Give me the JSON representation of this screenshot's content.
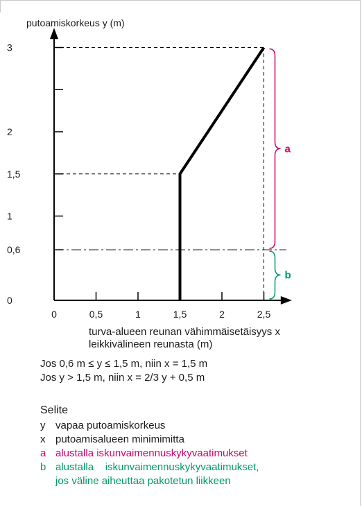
{
  "chart_data": {
    "type": "line",
    "ylabel": "putoamiskorkeus y (m)",
    "xlabel_lines": [
      "turva-alueen reunan vähimmäisetäisyys x",
      "leikkivälineen reunasta (m)"
    ],
    "xlim": [
      0,
      2.8
    ],
    "ylim": [
      0,
      3.2
    ],
    "x_ticks": [
      {
        "value": 0,
        "label": "0"
      },
      {
        "value": 0.5,
        "label": "0,5"
      },
      {
        "value": 1,
        "label": "1"
      },
      {
        "value": 1.5,
        "label": "1,5"
      },
      {
        "value": 2,
        "label": "2"
      },
      {
        "value": 2.5,
        "label": "2,5"
      }
    ],
    "y_ticks": [
      {
        "value": 0,
        "label": "0"
      },
      {
        "value": 0.6,
        "label": "0,6"
      },
      {
        "value": 1,
        "label": "1"
      },
      {
        "value": 1.5,
        "label": "1,5"
      },
      {
        "value": 2,
        "label": "2"
      },
      {
        "value": 2.5,
        "label": ""
      },
      {
        "value": 3,
        "label": "3"
      }
    ],
    "series": [
      {
        "x": [
          1.5,
          1.5,
          2.5
        ],
        "y": [
          0,
          1.5,
          3
        ],
        "color": "#000000"
      }
    ],
    "guides": [
      {
        "style": "dashed",
        "from": [
          0,
          1.5
        ],
        "to": [
          1.5,
          1.5
        ]
      },
      {
        "style": "dashed",
        "from": [
          0,
          3
        ],
        "to": [
          2.5,
          3
        ]
      },
      {
        "style": "dashed",
        "from": [
          2.5,
          0
        ],
        "to": [
          2.5,
          3
        ]
      },
      {
        "style": "dashdot",
        "from": [
          0,
          0.6
        ],
        "to": [
          2.8,
          0.6
        ]
      }
    ],
    "braces": [
      {
        "label": "a",
        "y_range": [
          0.6,
          3
        ],
        "color": "#d4006e"
      },
      {
        "label": "b",
        "y_range": [
          0,
          0.6
        ],
        "color": "#009a66"
      }
    ]
  },
  "formulas": [
    "Jos 0,6 m ≤ y ≤ 1,5 m, niin x = 1,5 m",
    "Jos y > 1,5 m, niin x = 2/3 y + 0,5 m"
  ],
  "legend": {
    "title": "Selite",
    "items": [
      {
        "symbol": "y",
        "text": "vapaa putoamiskorkeus",
        "color": "#1a1a1a"
      },
      {
        "symbol": "x",
        "text": "putoamisalueen minimimitta",
        "color": "#1a1a1a"
      },
      {
        "symbol": "a",
        "text": "alustalla iskunvaimennuskykyvaatimukset",
        "color": "#d4006e"
      },
      {
        "symbol": "b",
        "text": "alustalla    iskunvaimennuskykyvaatimukset,",
        "color": "#009a66"
      },
      {
        "symbol": "",
        "text": "jos väline aiheuttaa pakotetun liikkeen",
        "color": "#009a66"
      }
    ]
  }
}
